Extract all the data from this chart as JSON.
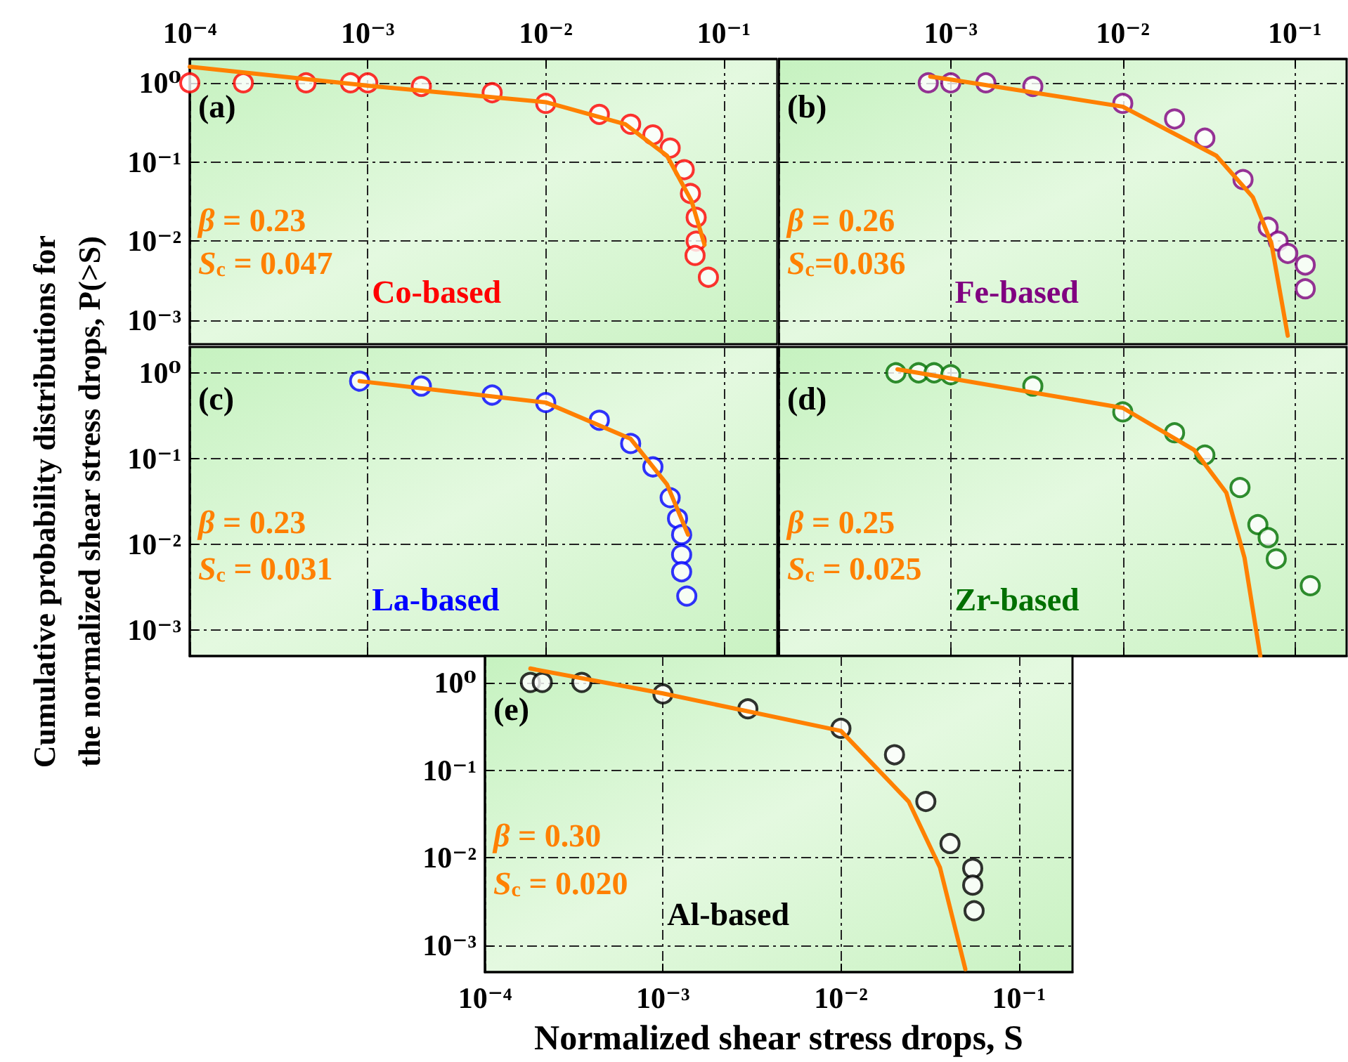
{
  "chart_data": [
    {
      "type": "scatter",
      "log": "xy",
      "grid": true,
      "xlim": [
        0.0001,
        0.2
      ],
      "ylim": [
        0.0005,
        2
      ],
      "xticks": [
        {
          "value": 0.0001,
          "label": "10⁻⁴"
        },
        {
          "value": 0.001,
          "label": "10⁻³"
        },
        {
          "value": 0.01,
          "label": "10⁻²"
        },
        {
          "value": 0.1,
          "label": "10⁻¹"
        }
      ],
      "yticks": [
        {
          "value": 0.001,
          "label": "10⁻³"
        },
        {
          "value": 0.01,
          "label": "10⁻²"
        },
        {
          "value": 0.1,
          "label": "10⁻¹"
        },
        {
          "value": 1,
          "label": "10⁰"
        }
      ],
      "annotations": [
        "(a)",
        "β = 0.23",
        "S$_{c}$ = 0.047"
      ],
      "series": [
        {
          "name": "Co-based",
          "color": "#ff0000",
          "type": "scatter",
          "marker": "circle",
          "x": [
            0.0001,
            0.0002,
            0.00045,
            0.0008,
            0.001,
            0.002,
            0.005,
            0.01,
            0.02,
            0.03,
            0.04,
            0.05,
            0.06,
            0.065,
            0.07,
            0.07,
            0.069,
            0.082
          ],
          "values": [
            1,
            1,
            1,
            1,
            1,
            0.9,
            0.75,
            0.55,
            0.4,
            0.3,
            0.22,
            0.15,
            0.08,
            0.04,
            0.02,
            0.01,
            0.0066,
            0.0035
          ]
        },
        {
          "color": "#ff8000",
          "type": "line",
          "marker": "none",
          "x": [
            0.0001,
            0.001,
            0.01,
            0.028,
            0.048,
            0.066,
            0.078
          ],
          "values": [
            1.6,
            0.92,
            0.57,
            0.3,
            0.12,
            0.032,
            0.009
          ]
        }
      ]
    },
    {
      "type": "scatter",
      "log": "xy",
      "grid": true,
      "tick_labels": "x",
      "xlim": [
        0.0001,
        0.2
      ],
      "ylim": [
        0.0005,
        2
      ],
      "xticks": [
        {
          "value": 0.0001,
          "label": null
        },
        {
          "value": 0.001,
          "label": "10⁻³"
        },
        {
          "value": 0.01,
          "label": "10⁻²"
        },
        {
          "value": 0.1,
          "label": "10⁻¹"
        }
      ],
      "yticks": [
        {
          "value": 0.001,
          "label": null
        },
        {
          "value": 0.01,
          "label": null
        },
        {
          "value": 0.1,
          "label": null
        },
        {
          "value": 1,
          "label": null
        }
      ],
      "annotations": [
        "(b)",
        "β = 0.26",
        "S$_{c}$=0.036"
      ],
      "series": [
        {
          "name": "Fe-based",
          "color": "#800080",
          "type": "scatter",
          "marker": "circle",
          "x": [
            0.00074,
            0.001,
            0.0016,
            0.003,
            0.01,
            0.02,
            0.03,
            0.05,
            0.07,
            0.08,
            0.091,
            0.115,
            0.115
          ],
          "values": [
            1,
            1,
            1,
            0.9,
            0.55,
            0.35,
            0.2,
            0.06,
            0.015,
            0.01,
            0.007,
            0.005,
            0.0025
          ]
        },
        {
          "color": "#ff8000",
          "type": "line",
          "marker": "none",
          "x": [
            0.00076,
            0.001,
            0.01,
            0.035,
            0.057,
            0.073,
            0.091
          ],
          "values": [
            1.2,
            1.1,
            0.5,
            0.12,
            0.036,
            0.0095,
            0.00064
          ]
        }
      ]
    },
    {
      "type": "scatter",
      "log": "xy",
      "grid": true,
      "tick_labels": "y",
      "ylabel": "Cumulative probability distributions for\nthe normalized shear stress drops, P(>S)",
      "xlim": [
        0.0001,
        0.2
      ],
      "ylim": [
        0.0005,
        2
      ],
      "xticks": [
        {
          "value": 0.0001,
          "label": null
        },
        {
          "value": 0.001,
          "label": null
        },
        {
          "value": 0.01,
          "label": null
        },
        {
          "value": 0.1,
          "label": null
        }
      ],
      "yticks": [
        {
          "value": 0.001,
          "label": "10⁻³"
        },
        {
          "value": 0.01,
          "label": "10⁻²"
        },
        {
          "value": 0.1,
          "label": "10⁻¹"
        },
        {
          "value": 1,
          "label": "10⁰"
        }
      ],
      "annotations": [
        "(c)",
        "β = 0.23",
        "S$_{c}$ = 0.031"
      ],
      "series": [
        {
          "name": "La-based",
          "color": "#0000ff",
          "type": "scatter",
          "marker": "circle",
          "x": [
            0.0009,
            0.002,
            0.005,
            0.01,
            0.02,
            0.03,
            0.04,
            0.05,
            0.055,
            0.058,
            0.058,
            0.058,
            0.062
          ],
          "values": [
            0.8,
            0.7,
            0.55,
            0.45,
            0.28,
            0.15,
            0.08,
            0.035,
            0.02,
            0.013,
            0.0076,
            0.0048,
            0.0025
          ]
        },
        {
          "color": "#ff8000",
          "type": "line",
          "marker": "none",
          "x": [
            0.0009,
            0.01,
            0.03,
            0.048,
            0.063
          ],
          "values": [
            0.8,
            0.45,
            0.17,
            0.05,
            0.013
          ]
        }
      ]
    },
    {
      "type": "scatter",
      "log": "xy",
      "grid": true,
      "tick_labels": false,
      "xlim": [
        0.0001,
        0.2
      ],
      "ylim": [
        0.0005,
        2
      ],
      "xticks": [
        {
          "value": 0.0001,
          "label": null
        },
        {
          "value": 0.001,
          "label": null
        },
        {
          "value": 0.01,
          "label": null
        },
        {
          "value": 0.1,
          "label": null
        }
      ],
      "yticks": [
        {
          "value": 0.001,
          "label": null
        },
        {
          "value": 0.01,
          "label": null
        },
        {
          "value": 0.1,
          "label": null
        },
        {
          "value": 1,
          "label": null
        }
      ],
      "annotations": [
        "(d)",
        "β = 0.25",
        "S$_{c}$ = 0.025"
      ],
      "series": [
        {
          "name": "Zr-based",
          "color": "#007000",
          "type": "scatter",
          "marker": "circle",
          "x": [
            0.00048,
            0.00065,
            0.0008,
            0.001,
            0.003,
            0.01,
            0.02,
            0.03,
            0.048,
            0.061,
            0.07,
            0.078,
            0.123
          ],
          "values": [
            1,
            1,
            1,
            0.95,
            0.7,
            0.35,
            0.2,
            0.11,
            0.046,
            0.017,
            0.012,
            0.0068,
            0.0033
          ]
        },
        {
          "color": "#ff8000",
          "type": "line",
          "marker": "none",
          "x": [
            0.00049,
            0.01,
            0.026,
            0.04,
            0.051,
            0.063
          ],
          "values": [
            1.1,
            0.39,
            0.126,
            0.04,
            0.007,
            0.0005
          ]
        }
      ]
    },
    {
      "type": "scatter",
      "log": "xy",
      "grid": true,
      "xlabel": "Normalized shear stress drops, S",
      "xlim": [
        0.0001,
        0.2
      ],
      "ylim": [
        0.0005,
        2
      ],
      "xticks": [
        {
          "value": 0.0001,
          "label": "10⁻⁴"
        },
        {
          "value": 0.001,
          "label": "10⁻³"
        },
        {
          "value": 0.01,
          "label": "10⁻²"
        },
        {
          "value": 0.1,
          "label": "10⁻¹"
        }
      ],
      "yticks": [
        {
          "value": 0.001,
          "label": "10⁻³"
        },
        {
          "value": 0.01,
          "label": "10⁻²"
        },
        {
          "value": 0.1,
          "label": "10⁻¹"
        },
        {
          "value": 1,
          "label": "10⁰"
        }
      ],
      "annotations": [
        "(e)",
        "β = 0.30",
        "S$_{c}$ = 0.020"
      ],
      "series": [
        {
          "name": "Al-based",
          "color": "#000000",
          "type": "scatter",
          "marker": "circle",
          "x": [
            0.00018,
            0.00021,
            0.00035,
            0.001,
            0.003,
            0.01,
            0.02,
            0.03,
            0.041,
            0.055,
            0.055,
            0.056
          ],
          "values": [
            1,
            1,
            1,
            0.74,
            0.5,
            0.3,
            0.15,
            0.044,
            0.0146,
            0.0076,
            0.0049,
            0.0025
          ]
        },
        {
          "color": "#ff8000",
          "type": "line",
          "marker": "none",
          "x": [
            0.00018,
            0.001,
            0.01,
            0.024,
            0.036,
            0.05
          ],
          "values": [
            1.44,
            0.75,
            0.28,
            0.044,
            0.0078,
            0.00054
          ]
        }
      ]
    }
  ]
}
